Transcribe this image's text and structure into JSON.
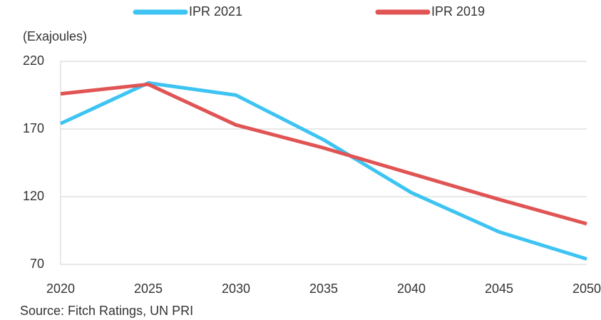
{
  "chart_data": {
    "type": "line",
    "y_label": "(Exajoules)",
    "source": "Source: Fitch Ratings, UN PRI",
    "x": [
      2020,
      2025,
      2030,
      2035,
      2040,
      2045,
      2050
    ],
    "series": [
      {
        "name": "IPR 2021",
        "color": "#3ec4f2",
        "values": [
          174,
          204,
          195,
          162,
          123,
          94,
          74
        ]
      },
      {
        "name": "IPR 2019",
        "color": "#e05454",
        "values": [
          196,
          203,
          173,
          156,
          137,
          118,
          100
        ]
      }
    ],
    "xlim": [
      2020,
      2050
    ],
    "xticks": [
      2020,
      2025,
      2030,
      2035,
      2040,
      2045,
      2050
    ],
    "ylim": [
      70,
      220
    ],
    "yticks": [
      70,
      120,
      170,
      220
    ],
    "grid": true
  }
}
